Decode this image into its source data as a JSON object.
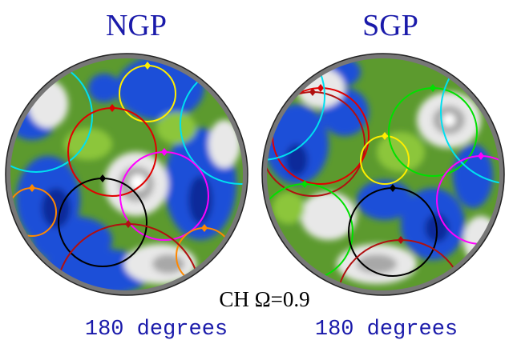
{
  "panels": [
    {
      "title": "NGP",
      "caption": "180 degrees"
    },
    {
      "title": "SGP",
      "caption": "180 degrees"
    }
  ],
  "label": "CH Ω=0.9"
}
